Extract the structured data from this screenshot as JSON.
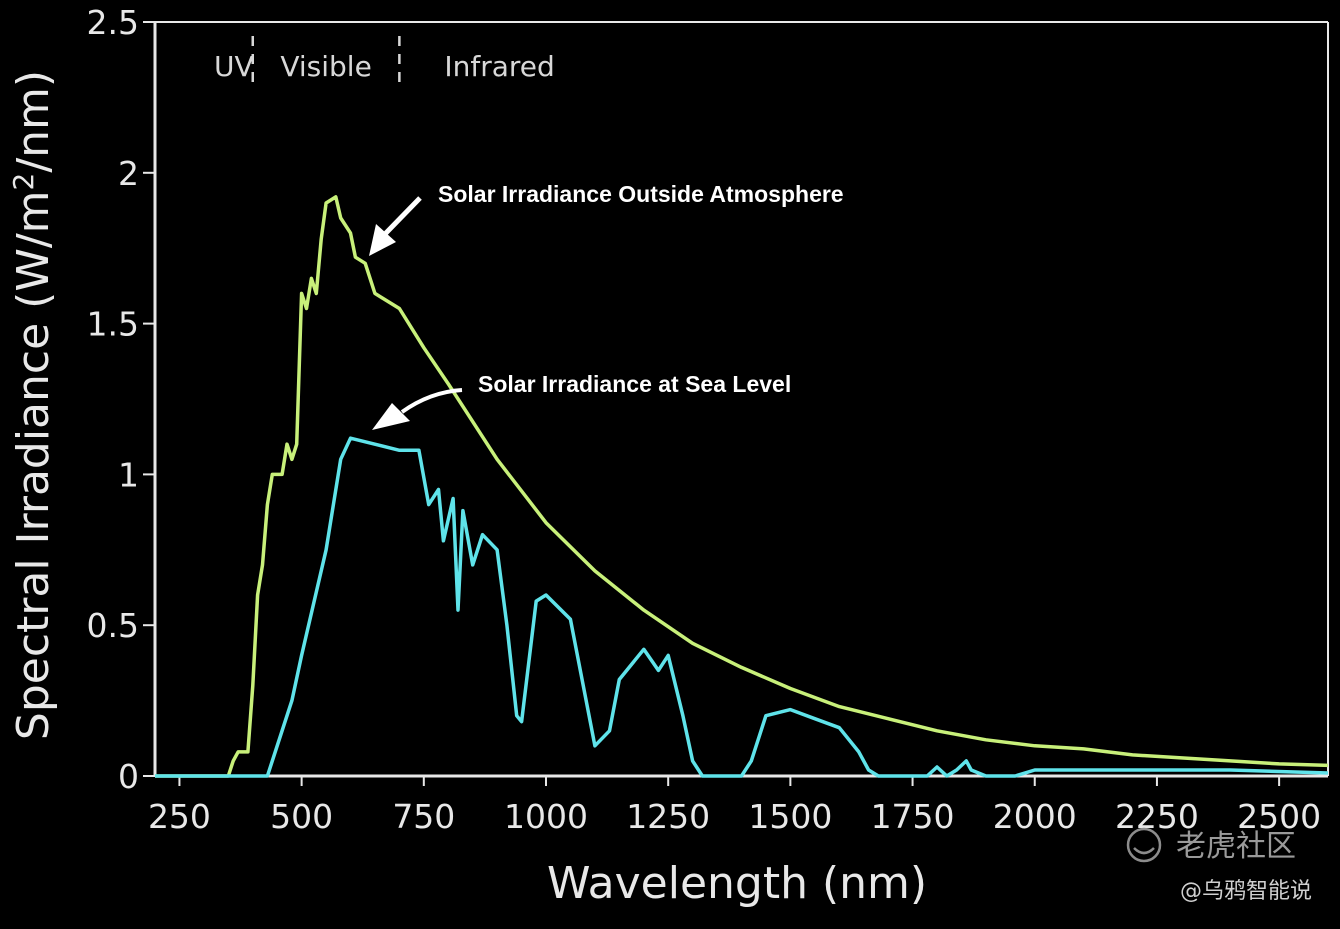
{
  "chart_data": {
    "type": "line",
    "title": "",
    "xlabel": "Wavelength (nm)",
    "ylabel_parts": {
      "before": "Spectral Irradiance (W/m",
      "sup": "2",
      "after": "/nm)"
    },
    "xlim": [
      200,
      2600
    ],
    "ylim": [
      0,
      2.5
    ],
    "x_ticks": [
      250,
      500,
      750,
      1000,
      1250,
      1500,
      1750,
      2000,
      2250,
      2500
    ],
    "x_tick_labels": [
      "250",
      "500",
      "750",
      "1000",
      "1250",
      "1500",
      "1750",
      "2000",
      "2250",
      "2500"
    ],
    "y_ticks": [
      0,
      0.5,
      1,
      1.5,
      2,
      2.5
    ],
    "y_tick_labels": [
      "0",
      "0.5",
      "1",
      "1.5",
      "2",
      "2.5"
    ],
    "grid": false,
    "regions": [
      {
        "label": "UV",
        "end": 400
      },
      {
        "label": "Visible",
        "end": 700
      },
      {
        "label": "Infrared"
      }
    ],
    "series": [
      {
        "name": "Solar Irradiance Outside Atmosphere",
        "color": "#c8f07a",
        "points": [
          [
            200,
            0
          ],
          [
            350,
            0
          ],
          [
            360,
            0.05
          ],
          [
            370,
            0.08
          ],
          [
            390,
            0.08
          ],
          [
            400,
            0.3
          ],
          [
            410,
            0.6
          ],
          [
            420,
            0.7
          ],
          [
            430,
            0.9
          ],
          [
            440,
            1.0
          ],
          [
            460,
            1.0
          ],
          [
            470,
            1.1
          ],
          [
            480,
            1.05
          ],
          [
            490,
            1.1
          ],
          [
            500,
            1.6
          ],
          [
            510,
            1.55
          ],
          [
            520,
            1.65
          ],
          [
            530,
            1.6
          ],
          [
            540,
            1.78
          ],
          [
            550,
            1.9
          ],
          [
            570,
            1.92
          ],
          [
            580,
            1.85
          ],
          [
            600,
            1.8
          ],
          [
            610,
            1.72
          ],
          [
            630,
            1.7
          ],
          [
            650,
            1.6
          ],
          [
            700,
            1.55
          ],
          [
            750,
            1.42
          ],
          [
            800,
            1.3
          ],
          [
            900,
            1.05
          ],
          [
            1000,
            0.84
          ],
          [
            1100,
            0.68
          ],
          [
            1200,
            0.55
          ],
          [
            1300,
            0.44
          ],
          [
            1400,
            0.36
          ],
          [
            1500,
            0.29
          ],
          [
            1600,
            0.23
          ],
          [
            1700,
            0.19
          ],
          [
            1800,
            0.15
          ],
          [
            1900,
            0.12
          ],
          [
            2000,
            0.1
          ],
          [
            2100,
            0.09
          ],
          [
            2200,
            0.07
          ],
          [
            2300,
            0.06
          ],
          [
            2400,
            0.05
          ],
          [
            2500,
            0.04
          ],
          [
            2600,
            0.035
          ]
        ]
      },
      {
        "name": "Solar Irradiance at Sea Level",
        "color": "#5fe3ea",
        "points": [
          [
            200,
            0
          ],
          [
            430,
            0
          ],
          [
            450,
            0.1
          ],
          [
            480,
            0.25
          ],
          [
            500,
            0.4
          ],
          [
            550,
            0.75
          ],
          [
            580,
            1.05
          ],
          [
            600,
            1.12
          ],
          [
            650,
            1.1
          ],
          [
            700,
            1.08
          ],
          [
            740,
            1.08
          ],
          [
            760,
            0.9
          ],
          [
            780,
            0.95
          ],
          [
            790,
            0.78
          ],
          [
            810,
            0.92
          ],
          [
            820,
            0.55
          ],
          [
            830,
            0.88
          ],
          [
            850,
            0.7
          ],
          [
            870,
            0.8
          ],
          [
            900,
            0.75
          ],
          [
            920,
            0.5
          ],
          [
            940,
            0.2
          ],
          [
            950,
            0.18
          ],
          [
            980,
            0.58
          ],
          [
            1000,
            0.6
          ],
          [
            1050,
            0.52
          ],
          [
            1100,
            0.1
          ],
          [
            1130,
            0.15
          ],
          [
            1150,
            0.32
          ],
          [
            1200,
            0.42
          ],
          [
            1230,
            0.35
          ],
          [
            1250,
            0.4
          ],
          [
            1280,
            0.2
          ],
          [
            1300,
            0.05
          ],
          [
            1320,
            0
          ],
          [
            1400,
            0
          ],
          [
            1420,
            0.05
          ],
          [
            1450,
            0.2
          ],
          [
            1500,
            0.22
          ],
          [
            1550,
            0.19
          ],
          [
            1600,
            0.16
          ],
          [
            1640,
            0.08
          ],
          [
            1660,
            0.02
          ],
          [
            1680,
            0
          ],
          [
            1780,
            0
          ],
          [
            1800,
            0.03
          ],
          [
            1820,
            0
          ],
          [
            1840,
            0.02
          ],
          [
            1860,
            0.05
          ],
          [
            1870,
            0.02
          ],
          [
            1900,
            0
          ],
          [
            1960,
            0
          ],
          [
            2000,
            0.02
          ],
          [
            2200,
            0.02
          ],
          [
            2400,
            0.02
          ],
          [
            2600,
            0.01
          ]
        ]
      }
    ],
    "annotations": [
      {
        "text": "Solar Irradiance Outside Atmosphere"
      },
      {
        "text": "Solar Irradiance at Sea Level"
      }
    ]
  },
  "watermarks": {
    "logo_text": "老虎社区",
    "author": "@乌鸦智能说"
  },
  "colors": {
    "background": "#000000",
    "axis": "#e8e8e8",
    "annotation_arrow": "#ffffff"
  }
}
